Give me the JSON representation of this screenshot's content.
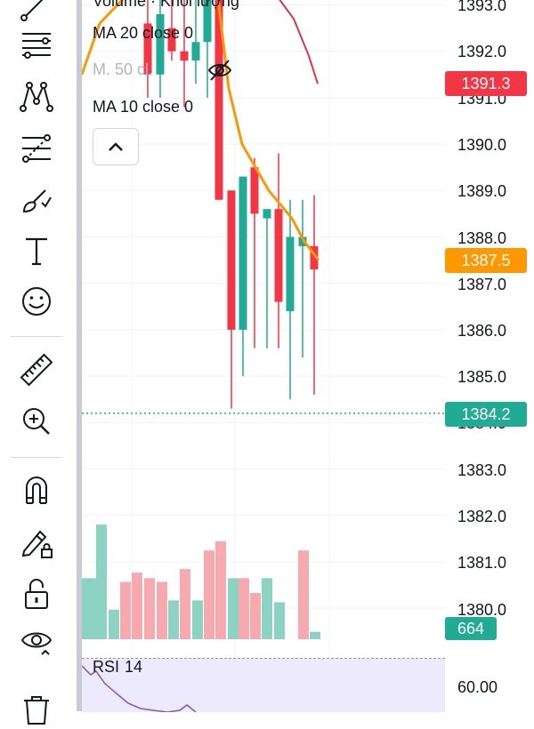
{
  "toolbar": {
    "tools": [
      {
        "name": "trend-line-icon"
      },
      {
        "name": "horizontal-lines-icon"
      },
      {
        "name": "pattern-icon"
      },
      {
        "name": "fib-retracement-icon"
      },
      {
        "name": "brush-icon"
      },
      {
        "name": "text-icon"
      },
      {
        "name": "emoji-icon"
      },
      {
        "name": "ruler-icon"
      },
      {
        "name": "zoom-in-icon"
      },
      {
        "name": "magnet-icon"
      },
      {
        "name": "lock-drawings-icon"
      },
      {
        "name": "unlock-icon"
      },
      {
        "name": "eye-icon"
      },
      {
        "name": "trash-icon"
      }
    ]
  },
  "legend": {
    "volume_label": "Volume · Khối lượng",
    "ma20": "MA 20 close 0",
    "ma50": "M. 50 cl.",
    "ma10": "MA 10 close 0",
    "collapse_icon": "chevron-up-icon"
  },
  "price_axis": {
    "ticks": [
      "1393.0",
      "1392.0",
      "1391.0",
      "1390.0",
      "1389.0",
      "1388.0",
      "1387.0",
      "1386.0",
      "1385.0",
      "1384.0",
      "1383.0",
      "1382.0",
      "1381.0",
      "1380.0"
    ],
    "tags": {
      "ma_red": {
        "value": "1391.3",
        "color": "#f23645"
      },
      "ma_orange": {
        "value": "1387.5",
        "color": "#ff9800"
      },
      "last_price": {
        "value": "1384.2",
        "color": "#22ab94"
      },
      "volume": {
        "value": "664",
        "color": "#22ab94"
      }
    }
  },
  "rsi": {
    "label": "RSI",
    "period": "14",
    "tick": "60.00",
    "color": "#7e57c2"
  },
  "colors": {
    "up": "#22ab94",
    "down": "#f23645",
    "up_vol": "#8dd3c3",
    "down_vol": "#f7a9b0",
    "ma_orange": "#ff9800",
    "ma_red": "#e0353f"
  },
  "chart_data": {
    "type": "candlestick",
    "candles": [
      {
        "o": 1392.6,
        "h": 1393.5,
        "l": 1391.0,
        "c": 1391.5
      },
      {
        "o": 1391.5,
        "h": 1393.5,
        "l": 1391.0,
        "c": 1392.8
      },
      {
        "o": 1392.5,
        "h": 1393.5,
        "l": 1391.8,
        "c": 1392.0
      },
      {
        "o": 1392.0,
        "h": 1393.5,
        "l": 1390.8,
        "c": 1391.8
      },
      {
        "o": 1391.8,
        "h": 1393.5,
        "l": 1391.3,
        "c": 1392.2
      },
      {
        "o": 1392.2,
        "h": 1393.5,
        "l": 1391.0,
        "c": 1393.5
      },
      {
        "o": 1393.5,
        "h": 1393.5,
        "l": 1388.8,
        "c": 1388.8
      },
      {
        "o": 1389.0,
        "h": 1389.0,
        "l": 1384.3,
        "c": 1386.0
      },
      {
        "o": 1386.0,
        "h": 1389.3,
        "l": 1385.0,
        "c": 1389.3
      },
      {
        "o": 1389.5,
        "h": 1389.7,
        "l": 1385.6,
        "c": 1388.5
      },
      {
        "o": 1388.4,
        "h": 1388.6,
        "l": 1385.6,
        "c": 1388.6
      },
      {
        "o": 1388.6,
        "h": 1389.8,
        "l": 1385.6,
        "c": 1386.6
      },
      {
        "o": 1386.4,
        "h": 1388.8,
        "l": 1384.5,
        "c": 1388.0
      },
      {
        "o": 1387.8,
        "h": 1388.8,
        "l": 1385.4,
        "c": 1388.0
      },
      {
        "o": 1387.8,
        "h": 1388.9,
        "l": 1384.6,
        "c": 1387.3
      }
    ],
    "volume_relative": [
      0.33,
      0.33,
      0.62,
      0.16,
      0.31,
      0.36,
      0.33,
      0.31,
      0.21,
      0.38,
      0.21,
      0.48,
      0.53,
      0.33,
      0.33,
      0.25,
      0.33,
      0.2,
      0.48,
      0.04
    ],
    "ma_orange": [
      [
        0,
        1391.5
      ],
      [
        2,
        1392.6
      ],
      [
        6,
        1393.0
      ],
      [
        7,
        1391.6
      ],
      [
        9,
        1390.4
      ],
      [
        11,
        1389.4
      ],
      [
        13,
        1388.5
      ],
      [
        15,
        1387.5
      ]
    ],
    "ma_red": [
      [
        10,
        1393.5
      ],
      [
        12,
        1392.8
      ],
      [
        14,
        1391.8
      ],
      [
        15.5,
        1391.3
      ]
    ],
    "rsi_points": [
      [
        0,
        60.9
      ],
      [
        1,
        59.8
      ],
      [
        2,
        60.6
      ],
      [
        3,
        58.4
      ],
      [
        4,
        57.5
      ],
      [
        5,
        57.0
      ],
      [
        6,
        57.6
      ]
    ],
    "price_range": [
      1379.6,
      1393.2
    ]
  }
}
